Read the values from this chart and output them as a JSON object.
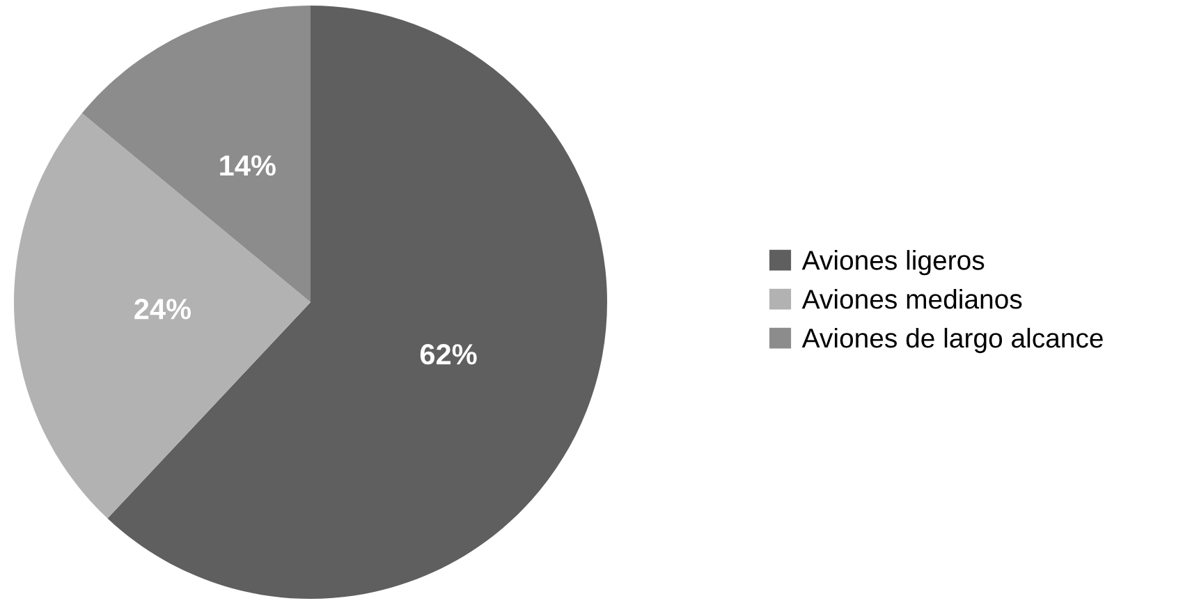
{
  "chart_data": {
    "type": "pie",
    "categories": [
      "Aviones ligeros",
      "Aviones medianos",
      "Aviones de largo alcance"
    ],
    "values": [
      62,
      24,
      14
    ],
    "value_labels": [
      "62%",
      "24%",
      "14%"
    ],
    "colors": [
      "#5f5f5f",
      "#b2b2b2",
      "#8c8c8c"
    ],
    "legend": "right"
  }
}
